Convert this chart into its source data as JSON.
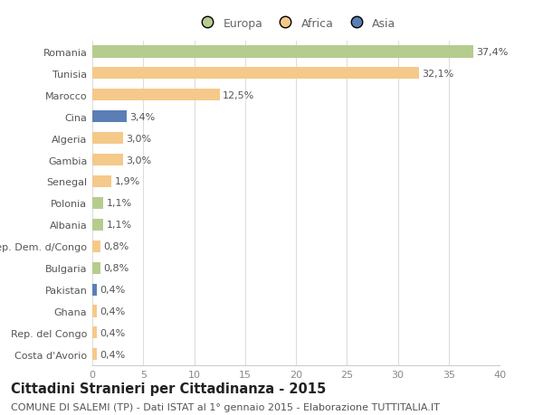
{
  "categories": [
    "Romania",
    "Tunisia",
    "Marocco",
    "Cina",
    "Algeria",
    "Gambia",
    "Senegal",
    "Polonia",
    "Albania",
    "Rep. Dem. d/Congo",
    "Bulgaria",
    "Pakistan",
    "Ghana",
    "Rep. del Congo",
    "Costa d'Avorio"
  ],
  "values": [
    37.4,
    32.1,
    12.5,
    3.4,
    3.0,
    3.0,
    1.9,
    1.1,
    1.1,
    0.8,
    0.8,
    0.4,
    0.4,
    0.4,
    0.4
  ],
  "labels": [
    "37,4%",
    "32,1%",
    "12,5%",
    "3,4%",
    "3,0%",
    "3,0%",
    "1,9%",
    "1,1%",
    "1,1%",
    "0,8%",
    "0,8%",
    "0,4%",
    "0,4%",
    "0,4%",
    "0,4%"
  ],
  "colors": [
    "#b5cc8e",
    "#f5c98a",
    "#f5c98a",
    "#5b7fb5",
    "#f5c98a",
    "#f5c98a",
    "#f5c98a",
    "#b5cc8e",
    "#b5cc8e",
    "#f5c98a",
    "#b5cc8e",
    "#5b7fb5",
    "#f5c98a",
    "#f5c98a",
    "#f5c98a"
  ],
  "legend_labels": [
    "Europa",
    "Africa",
    "Asia"
  ],
  "legend_colors": [
    "#b5cc8e",
    "#f5c98a",
    "#5b7fb5"
  ],
  "title": "Cittadini Stranieri per Cittadinanza - 2015",
  "subtitle": "COMUNE DI SALEMI (TP) - Dati ISTAT al 1° gennaio 2015 - Elaborazione TUTTITALIA.IT",
  "xlim": [
    0,
    40
  ],
  "xticks": [
    0,
    5,
    10,
    15,
    20,
    25,
    30,
    35,
    40
  ],
  "bg_color": "#ffffff",
  "bar_height": 0.55,
  "title_fontsize": 10.5,
  "subtitle_fontsize": 8,
  "label_fontsize": 8,
  "tick_fontsize": 8,
  "legend_fontsize": 9
}
